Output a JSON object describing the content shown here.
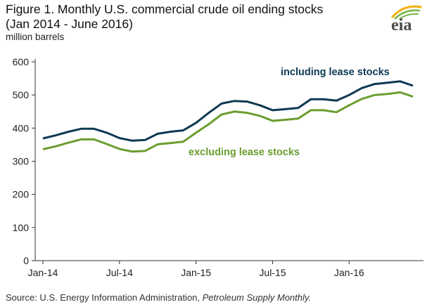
{
  "header": {
    "title_line1": "Figure 1. Monthly U.S. commercial crude oil ending stocks",
    "title_line2": "(Jan 2014 - June  2016)",
    "unit": "million barrels"
  },
  "logo": {
    "text": "eia",
    "icon": "eia-logo-icon"
  },
  "footer": {
    "source_prefix": "Source:  U.S. Energy Information Administration, ",
    "source_publication": "Petroleum Supply Monthly."
  },
  "colors": {
    "including": "#0d3a52",
    "excluding": "#6a9d2e",
    "axis": "#333333",
    "logo_gray": "#4a4a4a",
    "logo_green": "#7ab648",
    "logo_yellow": "#f2b31b"
  },
  "chart_data": {
    "type": "line",
    "x": [
      "Jan-14",
      "Feb-14",
      "Mar-14",
      "Apr-14",
      "May-14",
      "Jun-14",
      "Jul-14",
      "Aug-14",
      "Sep-14",
      "Oct-14",
      "Nov-14",
      "Dec-14",
      "Jan-15",
      "Feb-15",
      "Mar-15",
      "Apr-15",
      "May-15",
      "Jun-15",
      "Jul-15",
      "Aug-15",
      "Sep-15",
      "Oct-15",
      "Nov-15",
      "Dec-15",
      "Jan-16",
      "Feb-16",
      "Mar-16",
      "Apr-16",
      "May-16",
      "Jun-16"
    ],
    "series": [
      {
        "name": "including lease stocks",
        "color": "#0d3a52",
        "values": [
          369,
          378,
          389,
          398,
          398,
          386,
          370,
          362,
          364,
          383,
          389,
          393,
          416,
          446,
          474,
          482,
          480,
          469,
          454,
          457,
          461,
          487,
          487,
          483,
          500,
          521,
          533,
          537,
          541,
          528
        ]
      },
      {
        "name": "excluding lease stocks",
        "color": "#6a9d2e",
        "values": [
          336,
          345,
          356,
          366,
          366,
          352,
          337,
          329,
          331,
          351,
          355,
          359,
          386,
          412,
          441,
          450,
          446,
          437,
          422,
          425,
          429,
          454,
          454,
          448,
          469,
          488,
          500,
          503,
          508,
          495
        ]
      }
    ],
    "x_tick_labels": [
      "Jan-14",
      "Jul-14",
      "Jan-15",
      "Jul-15",
      "Jan-16"
    ],
    "x_tick_indices": [
      0,
      6,
      12,
      18,
      24
    ],
    "y_ticks": [
      0,
      100,
      200,
      300,
      400,
      500,
      600
    ],
    "ylim": [
      0,
      600
    ],
    "grid": false,
    "legend": "inline labels"
  }
}
